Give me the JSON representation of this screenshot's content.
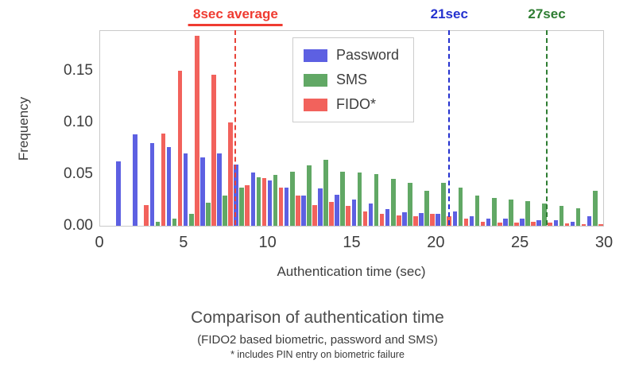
{
  "chart_data": {
    "type": "bar",
    "title": "",
    "xlabel": "Authentication time (sec)",
    "ylabel": "Frequency",
    "xlim": [
      0,
      30
    ],
    "ylim": [
      0,
      0.19
    ],
    "xticks": [
      0,
      5,
      10,
      15,
      20,
      25,
      30
    ],
    "yticks": [
      0,
      0.05,
      0.1,
      0.15
    ],
    "bin_width": 1,
    "bin_starts": [
      1,
      2,
      3,
      4,
      5,
      6,
      7,
      8,
      9,
      10,
      11,
      12,
      13,
      14,
      15,
      16,
      17,
      18,
      19,
      20,
      21,
      22,
      23,
      24,
      25,
      26,
      27,
      28,
      29
    ],
    "series": [
      {
        "name": "Password",
        "color": "#5d60e2",
        "values": [
          0.063,
          0.089,
          0.081,
          0.077,
          0.071,
          0.067,
          0.071,
          0.06,
          0.052,
          0.045,
          0.038,
          0.03,
          0.037,
          0.031,
          0.026,
          0.022,
          0.017,
          0.014,
          0.013,
          0.012,
          0.015,
          0.01,
          0.008,
          0.008,
          0.008,
          0.006,
          0.006,
          0.005,
          0.01
        ]
      },
      {
        "name": "SMS",
        "color": "#61a865",
        "values": [
          0,
          0,
          0.005,
          0.008,
          0.012,
          0.023,
          0.03,
          0.038,
          0.048,
          0.05,
          0.053,
          0.059,
          0.065,
          0.053,
          0.052,
          0.051,
          0.046,
          0.042,
          0.035,
          0.042,
          0.038,
          0.03,
          0.028,
          0.026,
          0.025,
          0.022,
          0.02,
          0.018,
          0.035
        ]
      },
      {
        "name": "FIDO*",
        "color": "#f2625c",
        "values": [
          0,
          0.021,
          0.09,
          0.151,
          0.185,
          0.147,
          0.101,
          0.04,
          0.047,
          0.038,
          0.03,
          0.021,
          0.024,
          0.02,
          0.015,
          0.012,
          0.011,
          0.01,
          0.012,
          0.01,
          0.008,
          0.005,
          0.004,
          0.004,
          0.005,
          0.004,
          0.003,
          0.002,
          0.002
        ]
      }
    ],
    "annotations": [
      {
        "label": "8sec average",
        "x": 8.1,
        "color": "#ef3b31",
        "line_color": "#e8443a",
        "underline": true
      },
      {
        "label": "21sec",
        "x": 20.8,
        "color": "#2431cf",
        "line_color": "#2431cf",
        "underline": false
      },
      {
        "label": "27sec",
        "x": 26.6,
        "color": "#2e7d32",
        "line_color": "#2e7d32",
        "underline": false
      }
    ],
    "legend_position": "upper center",
    "grid": false
  },
  "caption": {
    "title": "Comparison of authentication time",
    "subtitle": "(FIDO2 based biometric, password and SMS)",
    "footnote": "* includes PIN entry on biometric failure"
  }
}
